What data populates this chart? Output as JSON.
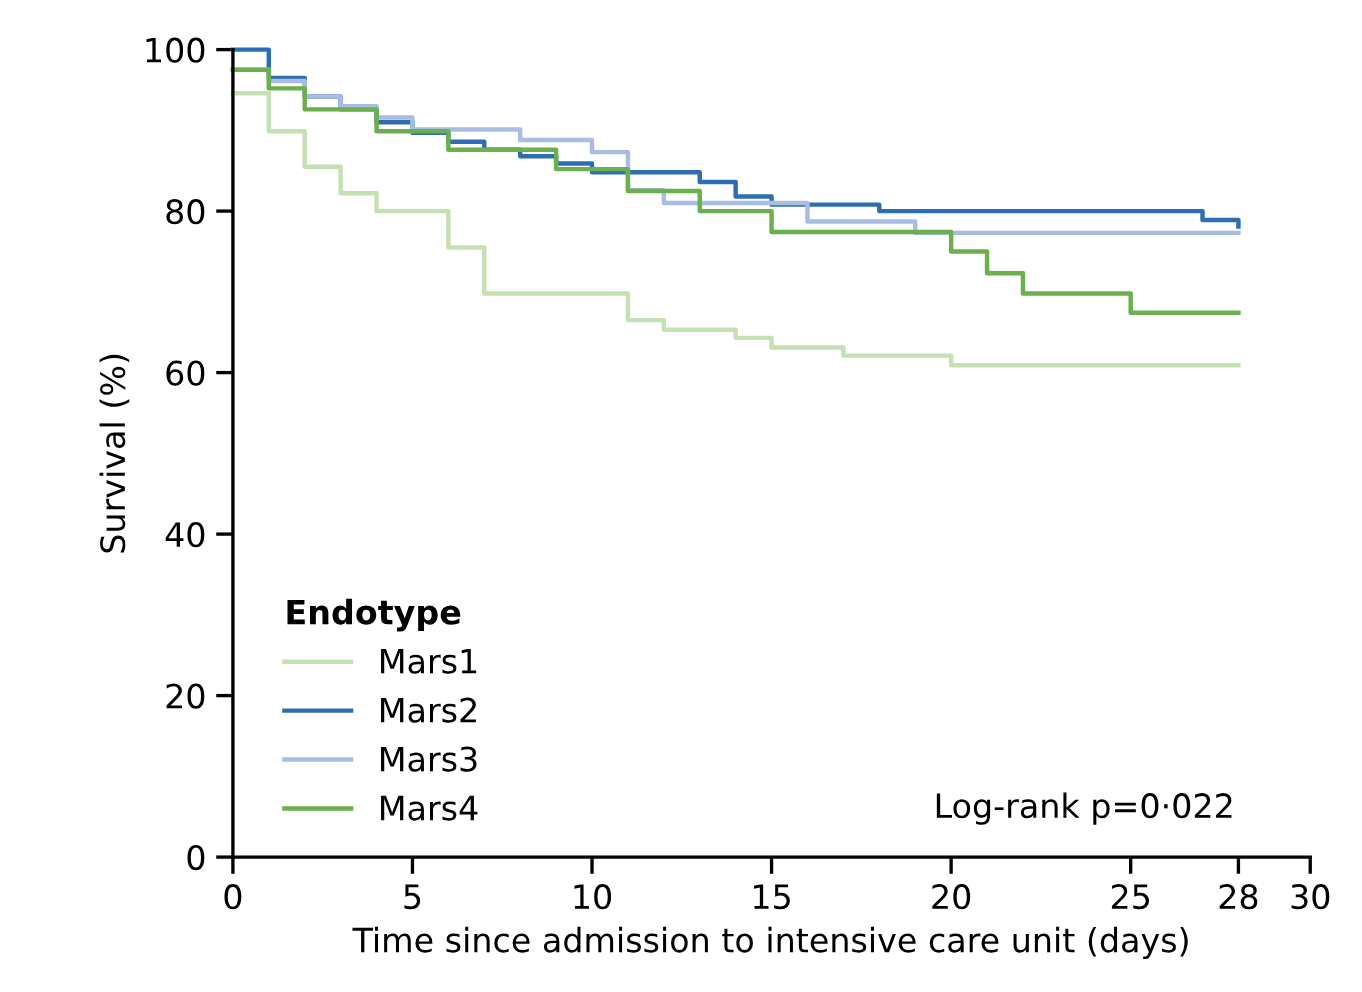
{
  "chart_data": {
    "type": "step",
    "xlabel": "Time since admission to intensive care unit (days)",
    "ylabel": "Survival (%)",
    "legend_title": "Endotype",
    "series": [
      {
        "name": "Mars1",
        "color": "#c5e0b3",
        "x": [
          0,
          1,
          2,
          3,
          4,
          6,
          7,
          11,
          12,
          14,
          15,
          17,
          20,
          28
        ],
        "values": [
          94.6,
          89.9,
          85.5,
          82.2,
          80.0,
          75.5,
          69.8,
          66.5,
          65.3,
          64.3,
          63.1,
          62.1,
          60.9,
          60.9
        ]
      },
      {
        "name": "Mars2",
        "color": "#2e6db4",
        "x": [
          0,
          1,
          2,
          3,
          4,
          5,
          6,
          7,
          8,
          9,
          10,
          13,
          14,
          15,
          18,
          27,
          28
        ],
        "values": [
          100,
          96.5,
          94.2,
          92.6,
          91.0,
          89.7,
          88.6,
          87.6,
          86.8,
          85.9,
          84.8,
          83.6,
          81.8,
          80.8,
          80.0,
          78.9,
          78.1
        ]
      },
      {
        "name": "Mars3",
        "color": "#a9bde3",
        "x": [
          0,
          1,
          2,
          3,
          4,
          5,
          7,
          8,
          10,
          11,
          12,
          16,
          19,
          28
        ],
        "values": [
          97.5,
          96.1,
          94.2,
          93.0,
          91.6,
          90.1,
          90.1,
          88.8,
          87.3,
          82.6,
          81.0,
          78.7,
          77.3,
          77.3
        ]
      },
      {
        "name": "Mars4",
        "color": "#6ab04c",
        "x": [
          0,
          1,
          2,
          4,
          6,
          9,
          11,
          13,
          15,
          20,
          21,
          22,
          25,
          28
        ],
        "values": [
          97.5,
          95.2,
          92.6,
          89.9,
          87.6,
          85.2,
          82.5,
          80.0,
          77.4,
          75.0,
          72.3,
          69.8,
          67.4,
          67.4
        ]
      }
    ],
    "xlim": [
      0,
      30
    ],
    "ylim": [
      0,
      100
    ],
    "xticks": [
      0,
      5,
      10,
      15,
      20,
      25,
      28,
      30
    ],
    "yticks": [
      0,
      20,
      40,
      60,
      80,
      100
    ],
    "grid": false,
    "legend": "bottom left",
    "annotations": [
      "Log-rank p=0·022"
    ]
  }
}
